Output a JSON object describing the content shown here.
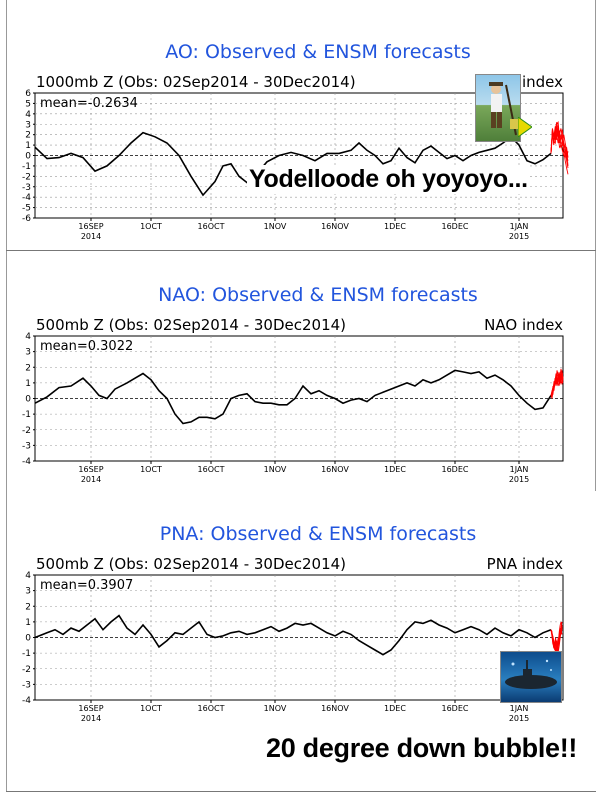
{
  "colors": {
    "title": "#2255dd",
    "obs_line": "#000000",
    "forecast_line": "#ff0000",
    "grid": "#999999",
    "panel_border": "#000000"
  },
  "overlays": {
    "ao_caption": "Yodelloode oh yoyoyo...",
    "pna_caption": "20 degree down bubble!!",
    "ao_image_icon": "yodeler-picture",
    "pna_image_icon": "submarine-picture"
  },
  "chart_data": [
    {
      "type": "line",
      "title": "AO: Observed & ENSM forecasts",
      "subtitle": "1000mb Z (Obs: 02Sep2014 - 30Dec2014)",
      "index_label": "index",
      "mean_label": "mean=-0.2634",
      "ylim": [
        -6,
        6
      ],
      "yticks": [
        "6",
        "5",
        "4",
        "3",
        "2",
        "1",
        "0",
        "-1",
        "-2",
        "-3",
        "-4",
        "-5",
        "-6"
      ],
      "xticks": [
        "16SEP",
        "1OCT",
        "16OCT",
        "1NOV",
        "16NOV",
        "1DEC",
        "16DEC",
        "1JAN"
      ],
      "xyear_left": "2014",
      "xyear_right": "2015",
      "xlim": [
        0,
        132
      ],
      "grid": true,
      "obs": [
        [
          0,
          0.8
        ],
        [
          3,
          -0.3
        ],
        [
          6,
          -0.2
        ],
        [
          9,
          0.2
        ],
        [
          12,
          -0.2
        ],
        [
          15,
          -1.5
        ],
        [
          18,
          -1.0
        ],
        [
          21,
          0
        ],
        [
          24,
          1.2
        ],
        [
          27,
          2.2
        ],
        [
          30,
          1.8
        ],
        [
          33,
          1.2
        ],
        [
          36,
          0
        ],
        [
          39,
          -2.0
        ],
        [
          42,
          -3.8
        ],
        [
          45,
          -2.5
        ],
        [
          47,
          -1.0
        ],
        [
          49,
          -0.8
        ],
        [
          51,
          -2.0
        ],
        [
          53,
          -2.6
        ],
        [
          56,
          -1.5
        ],
        [
          58,
          -0.6
        ],
        [
          61,
          0
        ],
        [
          64,
          0.3
        ],
        [
          67,
          0
        ],
        [
          70,
          -0.5
        ],
        [
          73,
          0.2
        ],
        [
          76,
          0.2
        ],
        [
          79,
          0.5
        ],
        [
          81,
          1.2
        ],
        [
          83,
          0.5
        ],
        [
          85,
          0
        ],
        [
          87,
          -0.8
        ],
        [
          89,
          -0.5
        ],
        [
          91,
          0.7
        ],
        [
          93,
          -0.2
        ],
        [
          95,
          -0.7
        ],
        [
          97,
          0.5
        ],
        [
          99,
          0.9
        ],
        [
          101,
          0.3
        ],
        [
          103,
          -0.3
        ],
        [
          105,
          0
        ],
        [
          107,
          -0.5
        ],
        [
          109,
          0
        ],
        [
          111,
          0.3
        ],
        [
          113,
          0.5
        ],
        [
          115,
          0.7
        ],
        [
          117,
          1.2
        ],
        [
          119,
          1.8
        ],
        [
          121,
          1.0
        ],
        [
          123,
          -0.5
        ],
        [
          125,
          -0.8
        ],
        [
          127,
          -0.4
        ],
        [
          129,
          0.2
        ]
      ],
      "ensemble": [
        [
          2.4,
          1.5,
          1.8,
          3.0,
          3.2,
          1.8,
          1.5,
          2.5,
          1.0,
          0.5,
          0.0,
          -0.5
        ],
        [
          2.2,
          1.0,
          2.5,
          3.2,
          2.5,
          1.2,
          2.0,
          1.5,
          0.5,
          -0.5,
          -1.2,
          -1.8
        ],
        [
          2.6,
          2.0,
          1.5,
          2.8,
          1.8,
          2.4,
          0.8,
          1.0,
          2.0,
          1.2,
          0.5,
          -1.0
        ],
        [
          2.0,
          1.2,
          2.2,
          1.5,
          2.8,
          1.5,
          1.2,
          0.5,
          0.0,
          -0.2,
          0.8,
          -0.2
        ],
        [
          2.5,
          1.8,
          2.8,
          2.0,
          1.2,
          2.0,
          2.6,
          1.8,
          1.2,
          0.8,
          -0.5,
          -1.2
        ],
        [
          2.3,
          1.4,
          1.2,
          2.4,
          2.0,
          0.8,
          1.0,
          1.4,
          0.6,
          0.2,
          -0.2,
          0.4
        ]
      ]
    },
    {
      "type": "line",
      "title": "NAO: Observed & ENSM forecasts",
      "subtitle": "500mb Z (Obs: 02Sep2014 - 30Dec2014)",
      "index_label": "NAO index",
      "mean_label": "mean=0.3022",
      "ylim": [
        -4,
        4
      ],
      "yticks": [
        "4",
        "3",
        "2",
        "1",
        "0",
        "-1",
        "-2",
        "-3",
        "-4"
      ],
      "xticks": [
        "16SEP",
        "1OCT",
        "16OCT",
        "1NOV",
        "16NOV",
        "1DEC",
        "16DEC",
        "1JAN"
      ],
      "xyear_left": "2014",
      "xyear_right": "2015",
      "xlim": [
        0,
        132
      ],
      "grid": true,
      "obs": [
        [
          0,
          -0.3
        ],
        [
          3,
          0.1
        ],
        [
          6,
          0.7
        ],
        [
          9,
          0.8
        ],
        [
          12,
          1.3
        ],
        [
          14,
          0.8
        ],
        [
          16,
          0.2
        ],
        [
          18,
          0
        ],
        [
          20,
          0.6
        ],
        [
          23,
          1.0
        ],
        [
          25,
          1.3
        ],
        [
          27,
          1.6
        ],
        [
          29,
          1.2
        ],
        [
          31,
          0.5
        ],
        [
          33,
          0
        ],
        [
          35,
          -1.0
        ],
        [
          37,
          -1.6
        ],
        [
          39,
          -1.5
        ],
        [
          41,
          -1.2
        ],
        [
          43,
          -1.2
        ],
        [
          45,
          -1.3
        ],
        [
          47,
          -1.0
        ],
        [
          49,
          0
        ],
        [
          51,
          0.2
        ],
        [
          53,
          0.3
        ],
        [
          55,
          -0.2
        ],
        [
          57,
          -0.3
        ],
        [
          59,
          -0.3
        ],
        [
          61,
          -0.4
        ],
        [
          63,
          -0.4
        ],
        [
          65,
          0
        ],
        [
          67,
          0.8
        ],
        [
          69,
          0.3
        ],
        [
          71,
          0.5
        ],
        [
          73,
          0.2
        ],
        [
          75,
          0
        ],
        [
          77,
          -0.3
        ],
        [
          79,
          -0.1
        ],
        [
          81,
          0
        ],
        [
          83,
          -0.2
        ],
        [
          85,
          0.2
        ],
        [
          87,
          0.4
        ],
        [
          89,
          0.6
        ],
        [
          91,
          0.8
        ],
        [
          93,
          1.0
        ],
        [
          95,
          0.8
        ],
        [
          97,
          1.2
        ],
        [
          99,
          1.0
        ],
        [
          101,
          1.2
        ],
        [
          103,
          1.5
        ],
        [
          105,
          1.8
        ],
        [
          107,
          1.7
        ],
        [
          109,
          1.6
        ],
        [
          111,
          1.7
        ],
        [
          113,
          1.3
        ],
        [
          115,
          1.5
        ],
        [
          117,
          1.2
        ],
        [
          119,
          0.8
        ],
        [
          121,
          0.2
        ],
        [
          123,
          -0.3
        ],
        [
          125,
          -0.7
        ],
        [
          127,
          -0.6
        ],
        [
          129,
          0.2
        ]
      ],
      "ensemble": [
        [
          0.2,
          0.6,
          1.0,
          0.8,
          1.2,
          1.5,
          1.0,
          0.8,
          1.3,
          1.6,
          1.2,
          1.0
        ],
        [
          0.4,
          0.3,
          0.8,
          1.2,
          0.9,
          1.3,
          1.7,
          1.2,
          0.9,
          1.4,
          1.8,
          1.2
        ],
        [
          0.0,
          0.5,
          0.7,
          1.0,
          1.4,
          0.8,
          1.2,
          1.6,
          1.3,
          1.0,
          1.5,
          1.6
        ],
        [
          0.3,
          0.8,
          0.5,
          1.1,
          1.6,
          1.4,
          0.9,
          1.3,
          1.7,
          1.2,
          0.9,
          1.4
        ],
        [
          0.1,
          0.4,
          1.1,
          0.9,
          1.0,
          1.8,
          1.5,
          1.1,
          1.4,
          1.9,
          1.4,
          1.1
        ],
        [
          0.5,
          0.7,
          0.6,
          1.3,
          1.1,
          1.0,
          1.3,
          1.5,
          1.1,
          1.3,
          1.6,
          1.3
        ]
      ]
    },
    {
      "type": "line",
      "title": "PNA: Observed & ENSM forecasts",
      "subtitle": "500mb Z (Obs: 02Sep2014 - 30Dec2014)",
      "index_label": "PNA index",
      "mean_label": "mean=0.3907",
      "ylim": [
        -4,
        4
      ],
      "yticks": [
        "4",
        "3",
        "2",
        "1",
        "0",
        "-1",
        "-2",
        "-3",
        "-4"
      ],
      "xticks": [
        "16SEP",
        "1OCT",
        "16OCT",
        "1NOV",
        "16NOV",
        "1DEC",
        "16DEC",
        "1JAN"
      ],
      "xyear_left": "2014",
      "xyear_right": "2015",
      "xlim": [
        0,
        132
      ],
      "grid": true,
      "obs": [
        [
          0,
          0
        ],
        [
          3,
          0.3
        ],
        [
          5,
          0.5
        ],
        [
          7,
          0.2
        ],
        [
          9,
          0.6
        ],
        [
          11,
          0.4
        ],
        [
          13,
          0.8
        ],
        [
          15,
          1.2
        ],
        [
          17,
          0.5
        ],
        [
          19,
          1.0
        ],
        [
          21,
          1.4
        ],
        [
          23,
          0.6
        ],
        [
          25,
          0.2
        ],
        [
          27,
          0.8
        ],
        [
          29,
          0.2
        ],
        [
          31,
          -0.6
        ],
        [
          33,
          -0.2
        ],
        [
          35,
          0.3
        ],
        [
          37,
          0.2
        ],
        [
          39,
          0.6
        ],
        [
          41,
          1.0
        ],
        [
          43,
          0.2
        ],
        [
          45,
          0
        ],
        [
          47,
          0.1
        ],
        [
          49,
          0.3
        ],
        [
          51,
          0.4
        ],
        [
          53,
          0.2
        ],
        [
          55,
          0.3
        ],
        [
          57,
          0.5
        ],
        [
          59,
          0.7
        ],
        [
          61,
          0.4
        ],
        [
          63,
          0.6
        ],
        [
          65,
          0.9
        ],
        [
          67,
          0.8
        ],
        [
          69,
          0.9
        ],
        [
          71,
          0.6
        ],
        [
          73,
          0.3
        ],
        [
          75,
          0.1
        ],
        [
          77,
          0.4
        ],
        [
          79,
          0.2
        ],
        [
          81,
          -0.2
        ],
        [
          83,
          -0.5
        ],
        [
          85,
          -0.8
        ],
        [
          87,
          -1.1
        ],
        [
          89,
          -0.8
        ],
        [
          91,
          -0.2
        ],
        [
          93,
          0.5
        ],
        [
          95,
          1.0
        ],
        [
          97,
          0.9
        ],
        [
          99,
          1.1
        ],
        [
          101,
          0.8
        ],
        [
          103,
          0.6
        ],
        [
          105,
          0.3
        ],
        [
          107,
          0.5
        ],
        [
          109,
          0.7
        ],
        [
          111,
          0.5
        ],
        [
          113,
          0.2
        ],
        [
          115,
          0.6
        ],
        [
          117,
          0.3
        ],
        [
          119,
          0.1
        ],
        [
          121,
          0.5
        ],
        [
          123,
          0.3
        ],
        [
          125,
          0
        ],
        [
          127,
          0.3
        ],
        [
          129,
          0.5
        ]
      ],
      "ensemble": [
        [
          0.3,
          -0.2,
          -0.6,
          -0.4,
          0.0,
          -0.5,
          -0.9,
          -0.4,
          0.1,
          0.5,
          0.2,
          0.6
        ],
        [
          0.2,
          0.0,
          -0.4,
          -0.8,
          -0.5,
          -0.2,
          -0.6,
          -0.3,
          0.4,
          0.8,
          1.0,
          0.6
        ],
        [
          0.4,
          -0.1,
          -0.3,
          -0.6,
          -1.0,
          -0.7,
          -0.3,
          0.0,
          -0.4,
          0.3,
          0.7,
          1.0
        ],
        [
          0.1,
          -0.3,
          -0.7,
          -0.5,
          -0.2,
          -0.8,
          -1.1,
          -0.6,
          -0.1,
          0.2,
          0.5,
          0.8
        ],
        [
          0.3,
          0.1,
          -0.2,
          -0.7,
          -0.4,
          -0.3,
          -0.5,
          -0.9,
          -0.5,
          0.0,
          0.4,
          0.2
        ],
        [
          0.2,
          -0.4,
          -0.5,
          -0.3,
          -0.7,
          -1.0,
          -0.6,
          -0.2,
          0.2,
          0.6,
          0.3,
          0.5
        ]
      ]
    }
  ]
}
